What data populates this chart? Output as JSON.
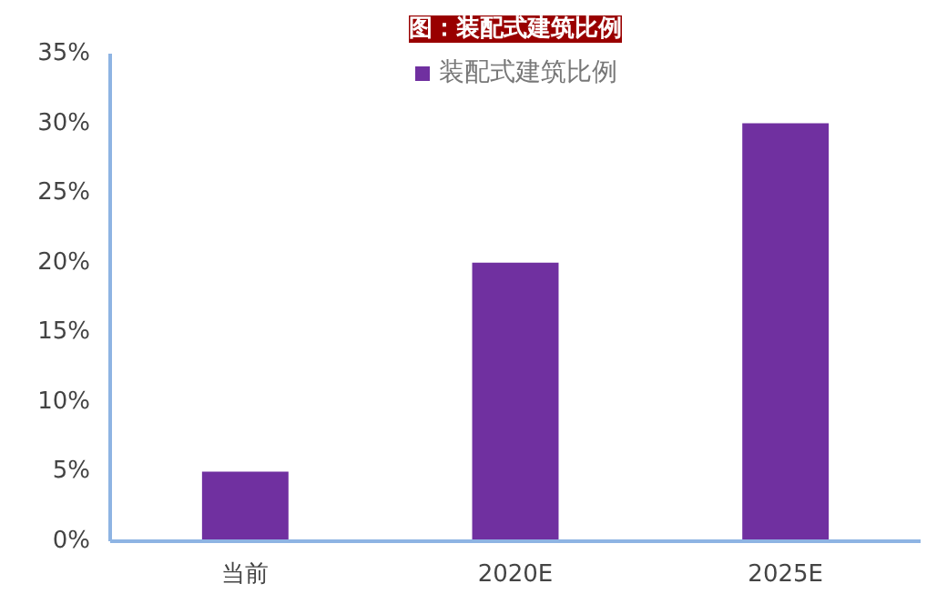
{
  "chart_data": {
    "type": "bar",
    "title": "图：装配式建筑比例",
    "categories": [
      "当前",
      "2020E",
      "2025E"
    ],
    "series": [
      {
        "name": "装配式建筑比例",
        "color": "#7030a0",
        "values": [
          5,
          20,
          30
        ]
      }
    ],
    "ylim": [
      0,
      35
    ],
    "yticks": [
      {
        "value": 0,
        "label": "0%"
      },
      {
        "value": 5,
        "label": "5%"
      },
      {
        "value": 10,
        "label": "10%"
      },
      {
        "value": 15,
        "label": "15%"
      },
      {
        "value": 20,
        "label": "20%"
      },
      {
        "value": 25,
        "label": "25%"
      },
      {
        "value": 30,
        "label": "30%"
      },
      {
        "value": 35,
        "label": "35%"
      }
    ],
    "grid": false,
    "legend": "top"
  }
}
